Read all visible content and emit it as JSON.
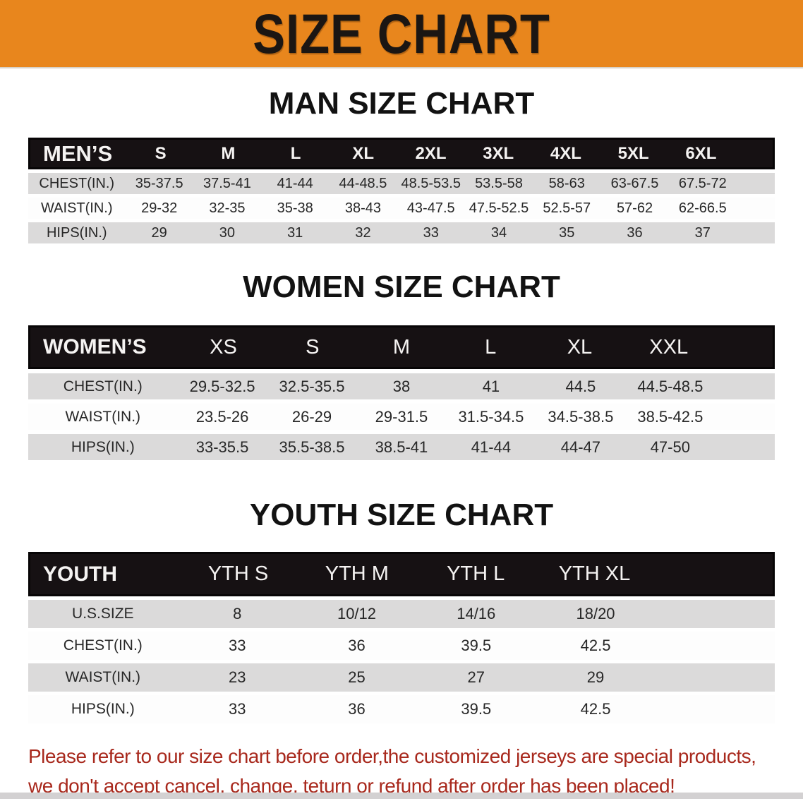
{
  "banner": {
    "title": "SIZE CHART",
    "bg_color": "#E8861D"
  },
  "colors": {
    "banner_bg": "#E8861D",
    "header_bar": "#161113",
    "stripe_gray": "#DBDADA",
    "footer_red": "#A8291D"
  },
  "sections": [
    {
      "key": "mens",
      "heading": "MAN SIZE CHART",
      "header_label": "MEN’S",
      "columns": [
        "S",
        "M",
        "L",
        "XL",
        "2XL",
        "3XL",
        "4XL",
        "5XL",
        "6XL"
      ],
      "rows": [
        {
          "label": "CHEST(IN.)",
          "values": [
            "35-37.5",
            "37.5-41",
            "41-44",
            "44-48.5",
            "48.5-53.5",
            "53.5-58",
            "58-63",
            "63-67.5",
            "67.5-72"
          ]
        },
        {
          "label": "WAIST(IN.)",
          "values": [
            "29-32",
            "32-35",
            "35-38",
            "38-43",
            "43-47.5",
            "47.5-52.5",
            "52.5-57",
            "57-62",
            "62-66.5"
          ]
        },
        {
          "label": "HIPS(IN.)",
          "values": [
            "29",
            "30",
            "31",
            "32",
            "33",
            "34",
            "35",
            "36",
            "37"
          ]
        }
      ]
    },
    {
      "key": "womens",
      "heading": "WOMEN SIZE CHART",
      "header_label": "WOMEN’S",
      "columns": [
        "XS",
        "S",
        "M",
        "L",
        "XL",
        "XXL"
      ],
      "rows": [
        {
          "label": "CHEST(IN.)",
          "values": [
            "29.5-32.5",
            "32.5-35.5",
            "38",
            "41",
            "44.5",
            "44.5-48.5"
          ]
        },
        {
          "label": "WAIST(IN.)",
          "values": [
            "23.5-26",
            "26-29",
            "29-31.5",
            "31.5-34.5",
            "34.5-38.5",
            "38.5-42.5"
          ]
        },
        {
          "label": "HIPS(IN.)",
          "values": [
            "33-35.5",
            "35.5-38.5",
            "38.5-41",
            "41-44",
            "44-47",
            "47-50"
          ]
        }
      ]
    },
    {
      "key": "youth",
      "heading": "YOUTH SIZE CHART",
      "header_label": "YOUTH",
      "columns": [
        "YTH S",
        "YTH M",
        "YTH L",
        "YTH XL"
      ],
      "rows": [
        {
          "label": "U.S.SIZE",
          "values": [
            "8",
            "10/12",
            "14/16",
            "18/20"
          ]
        },
        {
          "label": "CHEST(IN.)",
          "values": [
            "33",
            "36",
            "39.5",
            "42.5"
          ]
        },
        {
          "label": "WAIST(IN.)",
          "values": [
            "23",
            "25",
            "27",
            "29"
          ]
        },
        {
          "label": "HIPS(IN.)",
          "values": [
            "33",
            "36",
            "39.5",
            "42.5"
          ]
        }
      ]
    }
  ],
  "footer": {
    "line1": "Please refer to our size chart before order,the customized jerseys are special products,",
    "line2": "we don't accept cancel, change, teturn or refund after order has been placed!"
  }
}
